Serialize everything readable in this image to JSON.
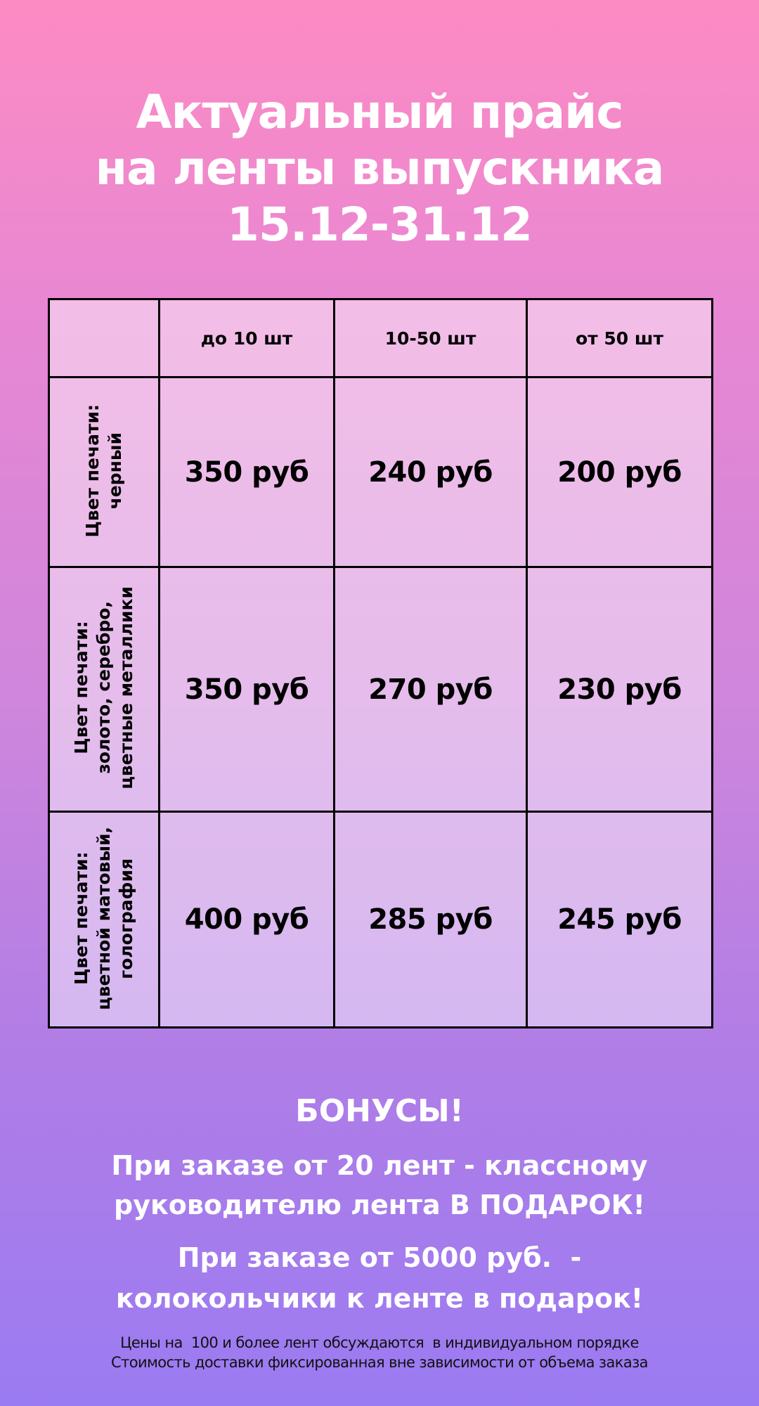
{
  "title": {
    "line1": "Актуальный прайс",
    "line2": "на ленты выпускника",
    "line3": "15.12-31.12"
  },
  "table": {
    "headers": [
      "",
      "до 10 шт",
      "10-50 шт",
      "от 50 шт"
    ],
    "rows": [
      {
        "label1": "Цвет печати:",
        "label2": "черный",
        "label3": "",
        "prices": [
          "350 руб",
          "240 руб",
          "200 руб"
        ]
      },
      {
        "label1": "Цвет печати:",
        "label2": "золото, серебро,",
        "label3": "цветные металлики",
        "prices": [
          "350 руб",
          "270 руб",
          "230 руб"
        ]
      },
      {
        "label1": "Цвет печати:",
        "label2": "цветной матовый,",
        "label3": "голография",
        "prices": [
          "400 руб",
          "285 руб",
          "245 руб"
        ]
      }
    ]
  },
  "bonus": {
    "heading": "БОНУСЫ!",
    "line1": "При заказе от 20 лент - классному",
    "line2": "руководителю лента В ПОДАРОК!",
    "line3": "При заказе от 5000 руб.  -",
    "line4": "колокольчики к ленте в подарок!"
  },
  "footer": {
    "line1": "Цены на  100 и более лент обсуждаются  в индивидуальном порядке",
    "line2": "Стоимость доставки фиксированная вне зависимости от объема заказа"
  },
  "colors": {
    "gradient_top": "#fd8bc3",
    "gradient_bottom": "#9b7bf2",
    "text_light": "#ffffff",
    "grid": "#000000"
  }
}
